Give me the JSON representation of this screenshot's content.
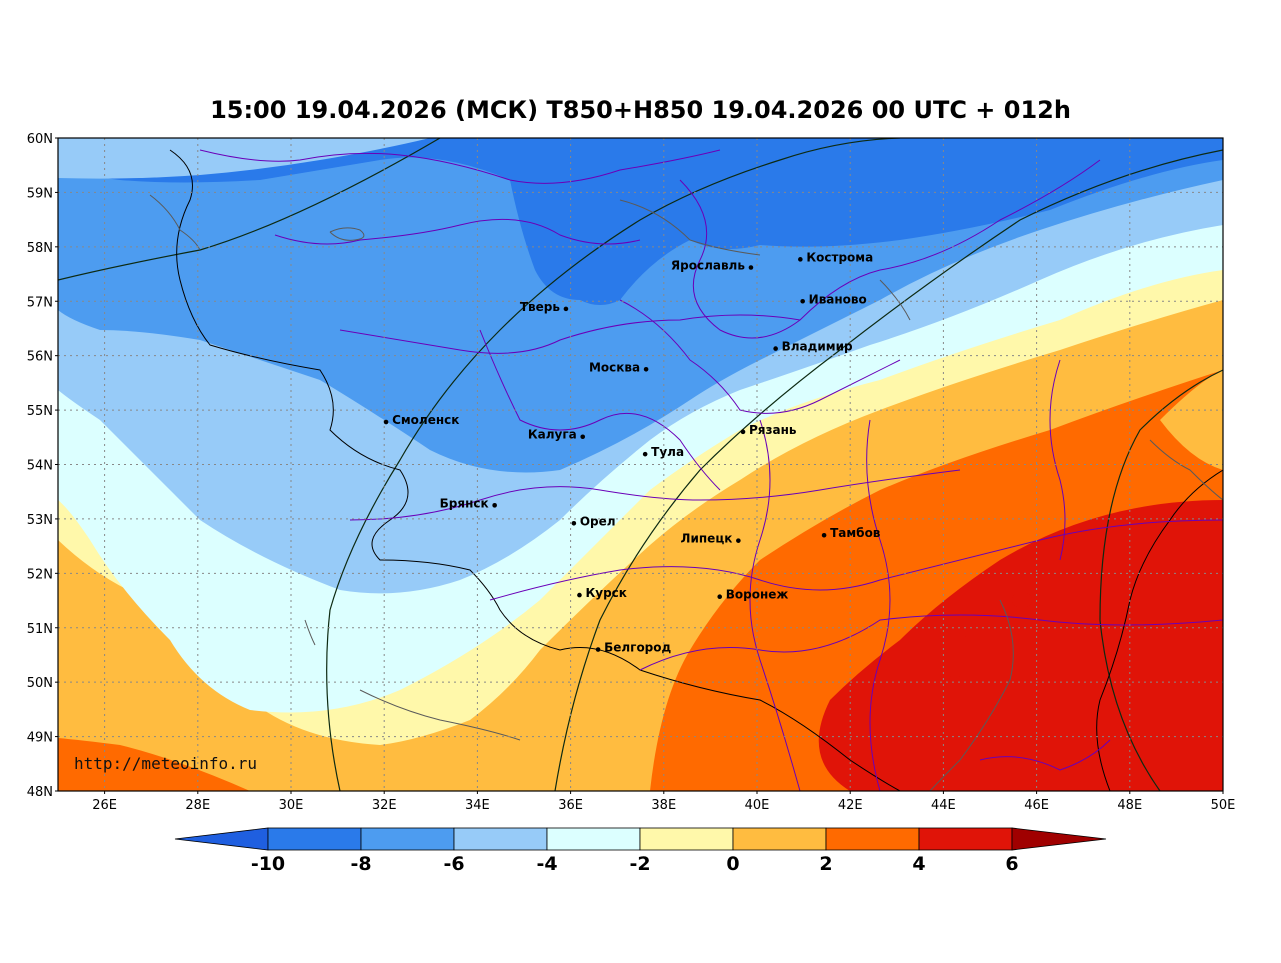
{
  "title": "15:00 19.04.2026 (МСК) T850+H850 19.04.2026 00 UTC + 012h",
  "watermark": "http://meteoinfo.ru",
  "latitudes": [
    "60N",
    "59N",
    "58N",
    "57N",
    "56N",
    "55N",
    "54N",
    "53N",
    "52N",
    "51N",
    "50N",
    "49N",
    "48N"
  ],
  "longitudes": [
    "26E",
    "28E",
    "30E",
    "32E",
    "34E",
    "36E",
    "38E",
    "40E",
    "42E",
    "44E",
    "46E",
    "48E",
    "50E"
  ],
  "cities": [
    {
      "name": "Кострома",
      "lon": 40.93,
      "lat": 57.77,
      "anchor": "start"
    },
    {
      "name": "Ярославль",
      "lon": 39.87,
      "lat": 57.62,
      "anchor": "end"
    },
    {
      "name": "Иваново",
      "lon": 40.98,
      "lat": 57.0,
      "anchor": "start"
    },
    {
      "name": "Тверь",
      "lon": 35.9,
      "lat": 56.86,
      "anchor": "end"
    },
    {
      "name": "Владимир",
      "lon": 40.4,
      "lat": 56.13,
      "anchor": "start"
    },
    {
      "name": "Москва",
      "lon": 37.62,
      "lat": 55.75,
      "anchor": "end"
    },
    {
      "name": "Смоленск",
      "lon": 32.04,
      "lat": 54.78,
      "anchor": "start"
    },
    {
      "name": "Рязань",
      "lon": 39.7,
      "lat": 54.6,
      "anchor": "start"
    },
    {
      "name": "Калуга",
      "lon": 36.26,
      "lat": 54.51,
      "anchor": "end"
    },
    {
      "name": "Тула",
      "lon": 37.6,
      "lat": 54.19,
      "anchor": "start"
    },
    {
      "name": "Брянск",
      "lon": 34.37,
      "lat": 53.25,
      "anchor": "end"
    },
    {
      "name": "Орел",
      "lon": 36.07,
      "lat": 52.92,
      "anchor": "start"
    },
    {
      "name": "Тамбов",
      "lon": 41.44,
      "lat": 52.7,
      "anchor": "start"
    },
    {
      "name": "Липецк",
      "lon": 39.6,
      "lat": 52.6,
      "anchor": "end"
    },
    {
      "name": "Курск",
      "lon": 36.19,
      "lat": 51.6,
      "anchor": "start"
    },
    {
      "name": "Воронеж",
      "lon": 39.2,
      "lat": 51.57,
      "anchor": "start"
    },
    {
      "name": "Белгород",
      "lon": 36.59,
      "lat": 50.6,
      "anchor": "start"
    }
  ],
  "colorbar": {
    "labels": [
      "-10",
      "-8",
      "-6",
      "-4",
      "-2",
      "0",
      "2",
      "4",
      "6"
    ],
    "colors": [
      "#1f5fe0",
      "#2a7aea",
      "#4d9cf0",
      "#97cbf8",
      "#dcffff",
      "#fff8aa",
      "#ffbc40",
      "#ff6a00",
      "#e01408",
      "#a00000"
    ]
  }
}
